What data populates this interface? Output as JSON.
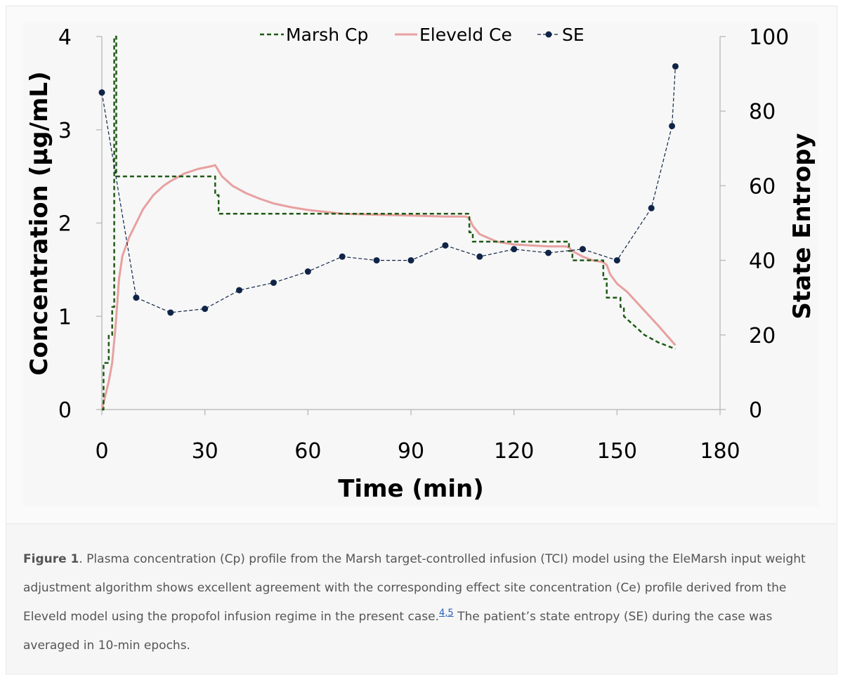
{
  "chart_data": {
    "type": "line",
    "xlabel": "Time (min)",
    "ylabel": "Concentration (µg/mL)",
    "y2label": "State Entropy",
    "xlim": [
      0,
      180
    ],
    "ylim": [
      0,
      4
    ],
    "y2lim": [
      0,
      100
    ],
    "xticks": [
      "0",
      "30",
      "60",
      "90",
      "120",
      "150",
      "180"
    ],
    "yticks": [
      "0",
      "1",
      "2",
      "3",
      "4"
    ],
    "y2ticks": [
      "0",
      "20",
      "40",
      "60",
      "80",
      "100"
    ],
    "grid": false,
    "legend_position": "top-center",
    "series": [
      {
        "name": "Marsh Cp",
        "axis": "left",
        "color": "#1e5a14",
        "style": "dashed-step",
        "x": [
          0,
          0.5,
          0.5,
          2,
          2,
          3,
          3,
          3.6,
          3.6,
          4.2,
          4.2,
          6,
          6,
          33,
          33,
          34,
          34,
          107,
          107,
          108,
          108,
          136,
          136,
          137,
          137,
          146,
          146,
          147,
          147,
          151,
          151,
          152,
          152,
          155,
          158,
          162,
          167
        ],
        "y": [
          0,
          0,
          0.5,
          0.5,
          0.8,
          0.8,
          1.1,
          1.1,
          4.0,
          4.0,
          2.5,
          2.5,
          2.5,
          2.5,
          2.3,
          2.3,
          2.1,
          2.1,
          1.9,
          1.9,
          1.8,
          1.8,
          1.7,
          1.7,
          1.6,
          1.6,
          1.4,
          1.4,
          1.2,
          1.2,
          1.1,
          1.1,
          1.0,
          0.9,
          0.8,
          0.72,
          0.65
        ]
      },
      {
        "name": "Eleveld Ce",
        "axis": "left",
        "color": "#e8a0a0",
        "style": "solid",
        "x": [
          0,
          1,
          2,
          3,
          4,
          5,
          6,
          8,
          10,
          12,
          15,
          18,
          20,
          24,
          28,
          32,
          33,
          35,
          38,
          42,
          46,
          50,
          55,
          60,
          70,
          80,
          90,
          100,
          106,
          107,
          108,
          110,
          115,
          120,
          125,
          130,
          135,
          136,
          137,
          140,
          143,
          146,
          147,
          148,
          150,
          153,
          155,
          158,
          162,
          167
        ],
        "y": [
          0,
          0.15,
          0.3,
          0.5,
          0.9,
          1.4,
          1.65,
          1.85,
          2.0,
          2.15,
          2.3,
          2.4,
          2.45,
          2.53,
          2.58,
          2.61,
          2.62,
          2.5,
          2.4,
          2.32,
          2.26,
          2.21,
          2.17,
          2.14,
          2.1,
          2.09,
          2.08,
          2.07,
          2.07,
          2.05,
          1.97,
          1.88,
          1.8,
          1.77,
          1.76,
          1.75,
          1.75,
          1.74,
          1.7,
          1.64,
          1.6,
          1.58,
          1.55,
          1.45,
          1.35,
          1.26,
          1.18,
          1.06,
          0.9,
          0.69
        ]
      },
      {
        "name": "SE",
        "axis": "right",
        "color": "#0f2447",
        "style": "dashed-markers",
        "x": [
          0,
          10,
          20,
          30,
          40,
          50,
          60,
          70,
          80,
          90,
          100,
          110,
          120,
          130,
          140,
          150,
          160,
          166,
          167
        ],
        "y": [
          85,
          30,
          26,
          27,
          32,
          34,
          37,
          41,
          40,
          40,
          44,
          41,
          43,
          42,
          43,
          40,
          54,
          76,
          92
        ]
      }
    ]
  },
  "caption": {
    "label": "Figure 1",
    "text_before": ". Plasma concentration (Cp) profile from the Marsh target-controlled infusion (TCI) model using the EleMarsh input weight adjustment algorithm shows excellent agreement with the corresponding effect site concentration (Ce) profile derived from the Eleveld model using the propofol infusion regime in the present case.",
    "citation": "4,5",
    "text_after": " The patient’s state entropy (SE) during the case was averaged in 10-min epochs."
  }
}
